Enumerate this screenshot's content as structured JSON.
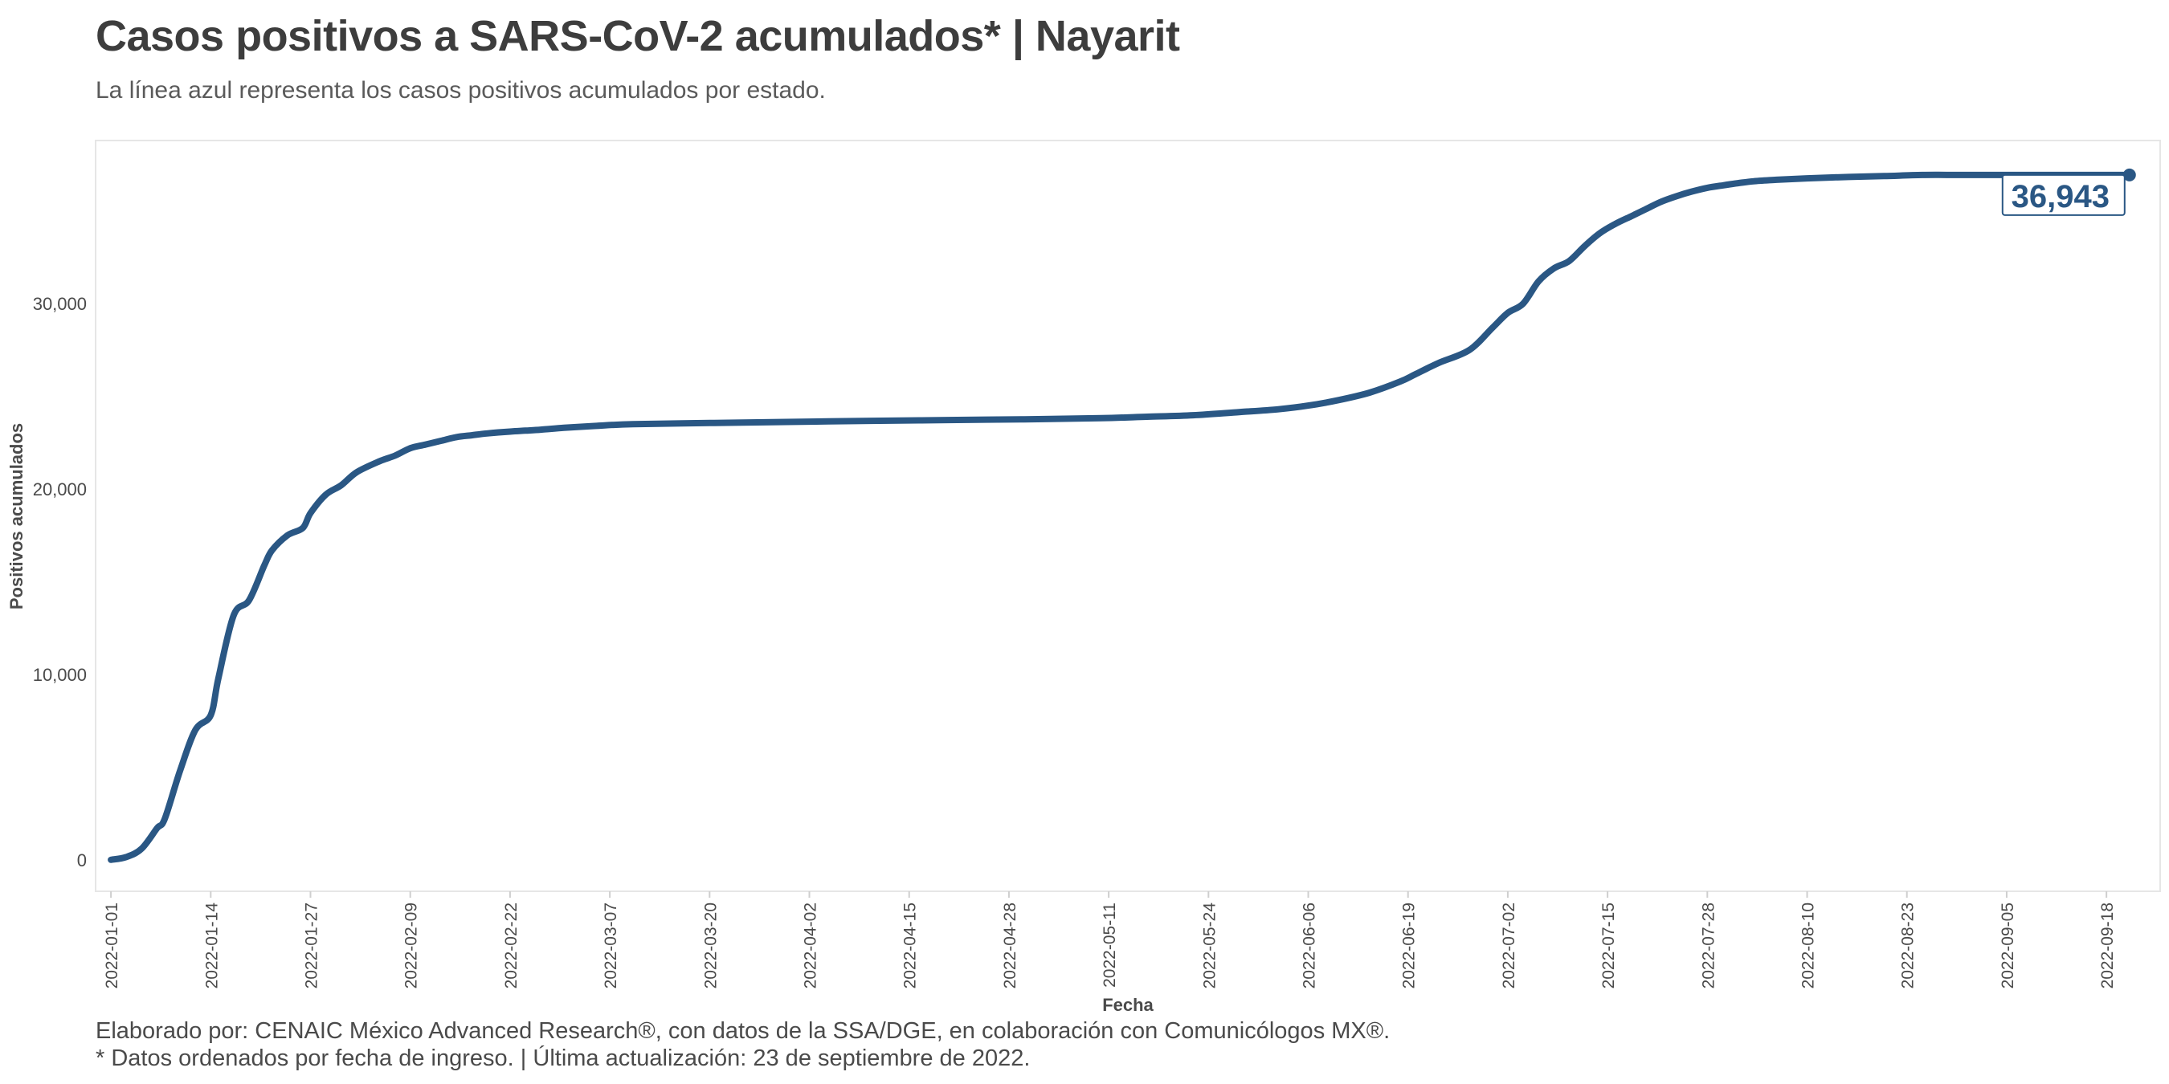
{
  "header": {
    "title": "Casos positivos a SARS-CoV-2 acumulados* | Nayarit",
    "subtitle": "La línea azul representa los casos positivos acumulados por estado."
  },
  "footer": {
    "caption_line1": "Elaborado por: CENAIC México Advanced Research®, con datos de la SSA/DGE, en colaboración con Comunicólogos MX®.",
    "caption_line2": "* Datos ordenados por fecha de ingreso. | Última actualización: 23 de septiembre de 2022."
  },
  "colors": {
    "line": "#2a5784",
    "axis_text": "#4a4a4a",
    "panel_border": "#e6e6e6"
  },
  "chart_data": {
    "type": "line",
    "title": "Casos positivos a SARS-CoV-2 acumulados* | Nayarit",
    "subtitle": "La línea azul representa los casos positivos acumulados por estado.",
    "xlabel": "Fecha",
    "ylabel": "Positivos acumulados",
    "x_ticks": [
      "2022-01-01",
      "2022-01-14",
      "2022-01-27",
      "2022-02-09",
      "2022-02-22",
      "2022-03-07",
      "2022-03-20",
      "2022-04-02",
      "2022-04-15",
      "2022-04-28",
      "2022-05-11",
      "2022-05-24",
      "2022-06-06",
      "2022-06-19",
      "2022-07-02",
      "2022-07-15",
      "2022-07-28",
      "2022-08-10",
      "2022-08-23",
      "2022-09-05",
      "2022-09-18"
    ],
    "y_ticks": [
      0,
      10000,
      20000,
      30000
    ],
    "y_tick_labels": [
      "0",
      "10,000",
      "20,000",
      "30,000"
    ],
    "xlim": [
      "2021-12-30",
      "2022-09-25"
    ],
    "ylim": [
      -1700,
      38800
    ],
    "grid": false,
    "end_label": "36,943",
    "series": [
      {
        "x": [
          "2022-01-01",
          "2022-01-03",
          "2022-01-05",
          "2022-01-07",
          "2022-01-08",
          "2022-01-10",
          "2022-01-12",
          "2022-01-14",
          "2022-01-15",
          "2022-01-17",
          "2022-01-19",
          "2022-01-21",
          "2022-01-22",
          "2022-01-24",
          "2022-01-26",
          "2022-01-27",
          "2022-01-29",
          "2022-01-31",
          "2022-02-02",
          "2022-02-05",
          "2022-02-07",
          "2022-02-09",
          "2022-02-11",
          "2022-02-13",
          "2022-02-15",
          "2022-02-17",
          "2022-02-19",
          "2022-02-22",
          "2022-02-24",
          "2022-02-26",
          "2022-03-01",
          "2022-03-05",
          "2022-03-10",
          "2022-03-20",
          "2022-03-30",
          "2022-04-10",
          "2022-04-20",
          "2022-04-30",
          "2022-05-10",
          "2022-05-16",
          "2022-05-22",
          "2022-05-28",
          "2022-06-02",
          "2022-06-06",
          "2022-06-10",
          "2022-06-14",
          "2022-06-18",
          "2022-06-20",
          "2022-06-23",
          "2022-06-27",
          "2022-06-30",
          "2022-07-02",
          "2022-07-04",
          "2022-07-06",
          "2022-07-08",
          "2022-07-10",
          "2022-07-12",
          "2022-07-14",
          "2022-07-16",
          "2022-07-18",
          "2022-07-20",
          "2022-07-22",
          "2022-07-24",
          "2022-07-26",
          "2022-07-28",
          "2022-07-30",
          "2022-08-01",
          "2022-08-03",
          "2022-08-06",
          "2022-08-10",
          "2022-08-15",
          "2022-08-20",
          "2022-08-25",
          "2022-08-30",
          "2022-09-05",
          "2022-09-10",
          "2022-09-15",
          "2022-09-20",
          "2022-09-21"
        ],
        "values": [
          0,
          150,
          600,
          1700,
          2200,
          4800,
          7000,
          7800,
          9800,
          13200,
          14000,
          15900,
          16700,
          17500,
          17900,
          18700,
          19700,
          20200,
          20900,
          21500,
          21800,
          22200,
          22400,
          22600,
          22800,
          22900,
          23000,
          23100,
          23150,
          23200,
          23300,
          23400,
          23500,
          23560,
          23620,
          23680,
          23720,
          23760,
          23820,
          23900,
          23980,
          24150,
          24300,
          24500,
          24800,
          25200,
          25800,
          26200,
          26800,
          27500,
          28700,
          29500,
          30000,
          31200,
          31900,
          32300,
          33100,
          33800,
          34300,
          34700,
          35100,
          35500,
          35800,
          36050,
          36250,
          36380,
          36500,
          36600,
          36680,
          36760,
          36830,
          36880,
          36943,
          36943,
          36943,
          36943,
          36943,
          36943,
          36943
        ]
      }
    ]
  }
}
